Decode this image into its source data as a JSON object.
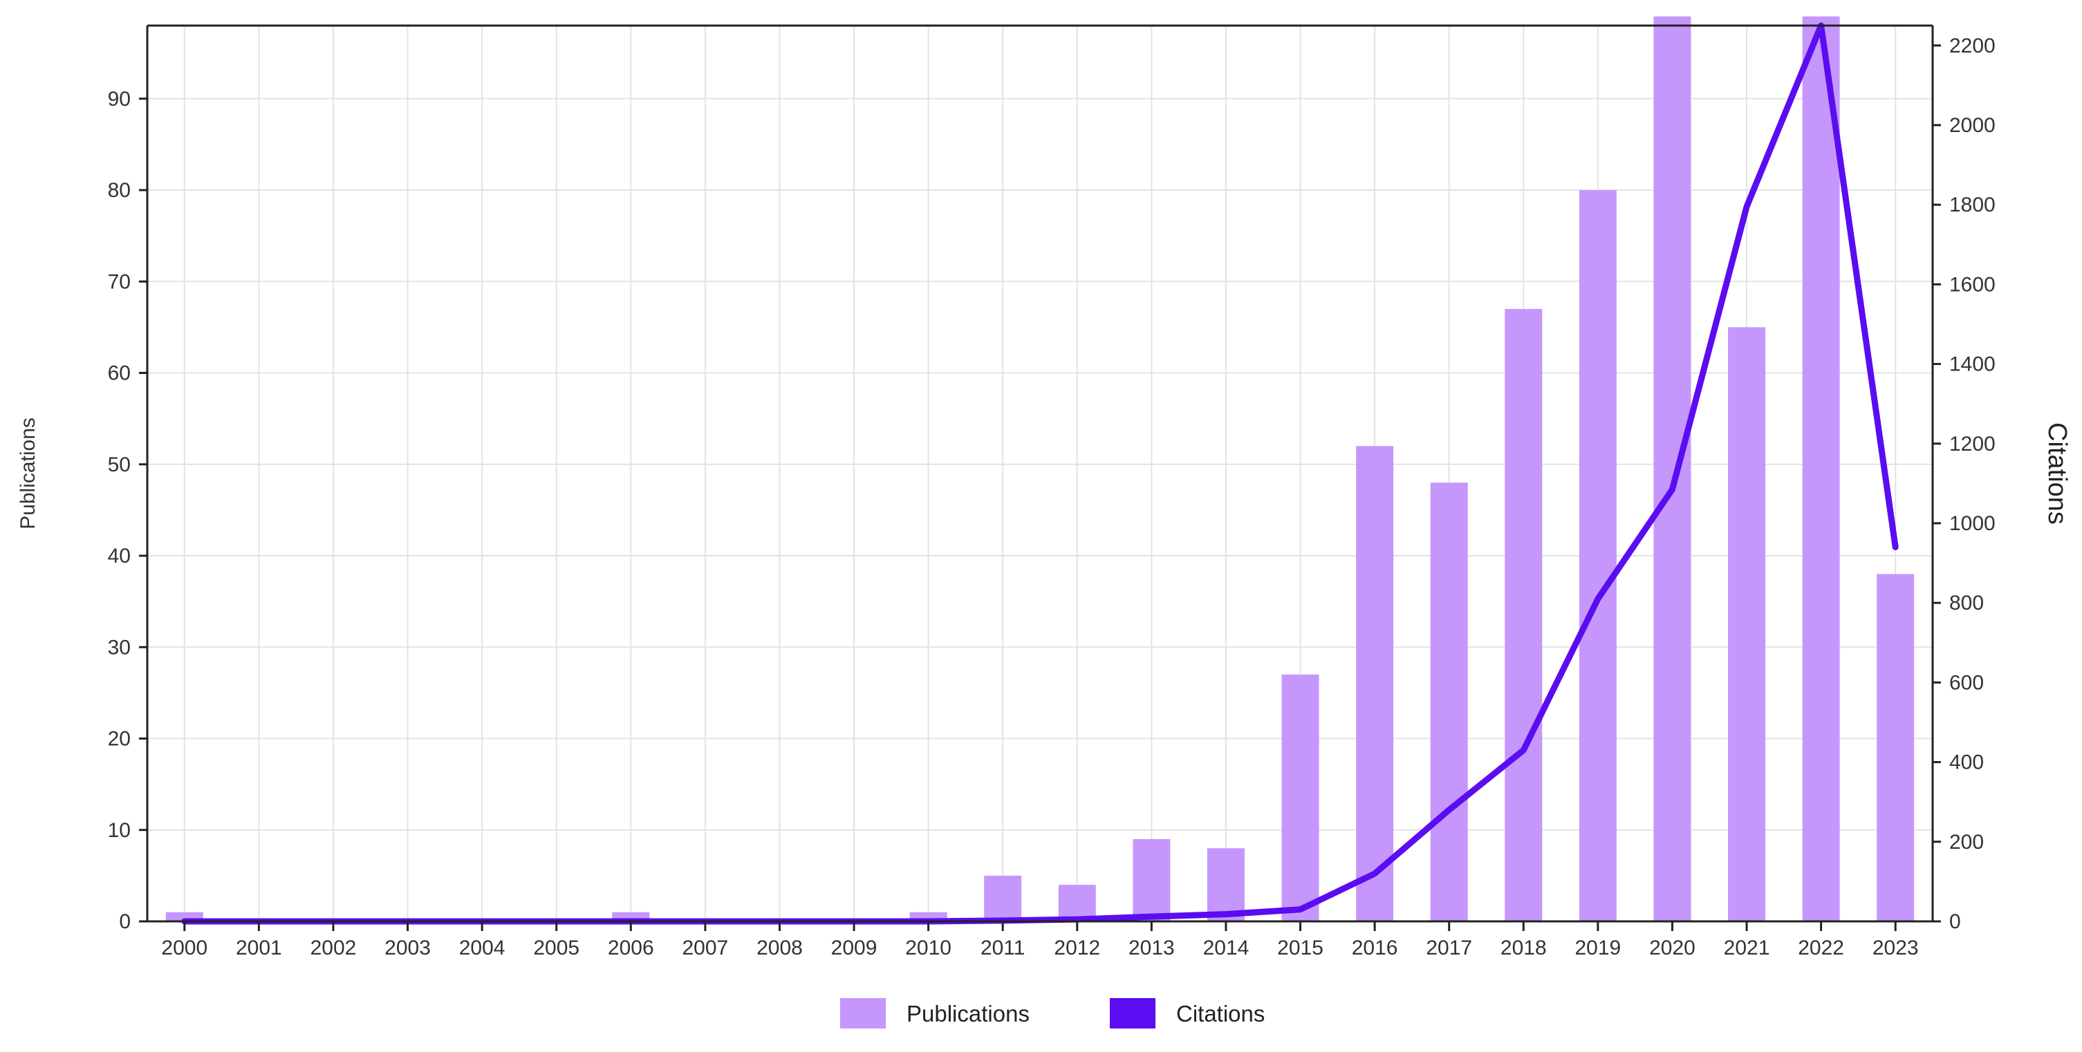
{
  "chart_data": {
    "type": "bar",
    "categories": [
      "2000",
      "2001",
      "2002",
      "2003",
      "2004",
      "2005",
      "2006",
      "2007",
      "2008",
      "2009",
      "2010",
      "2011",
      "2012",
      "2013",
      "2014",
      "2015",
      "2016",
      "2017",
      "2018",
      "2019",
      "2020",
      "2021",
      "2022",
      "2023"
    ],
    "series": [
      {
        "name": "Publications",
        "type": "bar",
        "axis": "left",
        "color": "#c597fc",
        "values": [
          1,
          0,
          0,
          0,
          0,
          0,
          1,
          0,
          0,
          0,
          1,
          5,
          4,
          9,
          8,
          27,
          52,
          48,
          67,
          80,
          99,
          65,
          99,
          38
        ]
      },
      {
        "name": "Citations",
        "type": "line",
        "axis": "right",
        "color": "#5b0cf0",
        "values": [
          0,
          0,
          0,
          0,
          0,
          0,
          0,
          0,
          0,
          0,
          0,
          2,
          5,
          12,
          18,
          30,
          120,
          280,
          430,
          810,
          1085,
          1795,
          2250,
          940
        ]
      }
    ],
    "ylabel": "Publications",
    "y2label": "Citations",
    "ylim": [
      0,
      98
    ],
    "y2lim": [
      0,
      2250
    ],
    "yticks": [
      0,
      10,
      20,
      30,
      40,
      50,
      60,
      70,
      80,
      90
    ],
    "y2ticks": [
      0,
      200,
      400,
      600,
      800,
      1000,
      1200,
      1400,
      1600,
      1800,
      2000,
      2200
    ],
    "grid": true,
    "legend": {
      "position": "bottom-center",
      "items": [
        {
          "label": "Publications",
          "color": "#c597fc"
        },
        {
          "label": "Citations",
          "color": "#5b0cf0"
        }
      ]
    }
  }
}
